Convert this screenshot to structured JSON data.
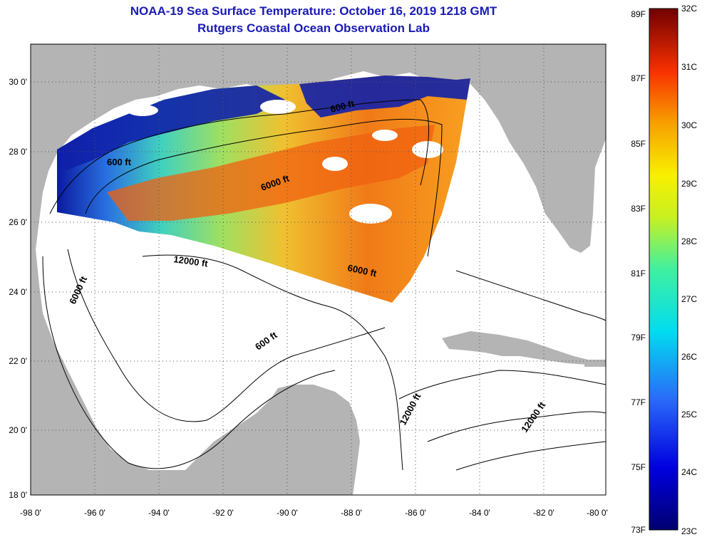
{
  "header": {
    "title": "NOAA-19 Sea Surface Temperature:  October 16, 2019 1218 GMT",
    "subtitle": "Rutgers Coastal Ocean Observation Lab"
  },
  "map": {
    "lon_ticks": [
      "-98 0'",
      "-96 0'",
      "-94 0'",
      "-92 0'",
      "-90 0'",
      "-88 0'",
      "-86 0'",
      "-84 0'",
      "-82 0'",
      "-80 0'"
    ],
    "lat_ticks": [
      "30 0'",
      "28 0'",
      "26 0'",
      "24 0'",
      "22 0'",
      "20 0'",
      "18 0'"
    ],
    "contour_labels": [
      "600 ft",
      "600 ft",
      "6000 ft",
      "12000 ft",
      "6000 ft",
      "6000 ft",
      "600 ft",
      "12000 ft",
      "12000 ft"
    ],
    "colors": {
      "land": "#b4b4b4",
      "ocean": "#ffffff",
      "cloud": "#ffffff",
      "contour": "#000000"
    }
  },
  "colorbar": {
    "fahrenheit": [
      "89F",
      "87F",
      "85F",
      "83F",
      "81F",
      "79F",
      "77F",
      "75F",
      "73F"
    ],
    "celsius": [
      "32C",
      "31C",
      "30C",
      "29C",
      "28C",
      "27C",
      "26C",
      "25C",
      "24C",
      "23C"
    ]
  }
}
